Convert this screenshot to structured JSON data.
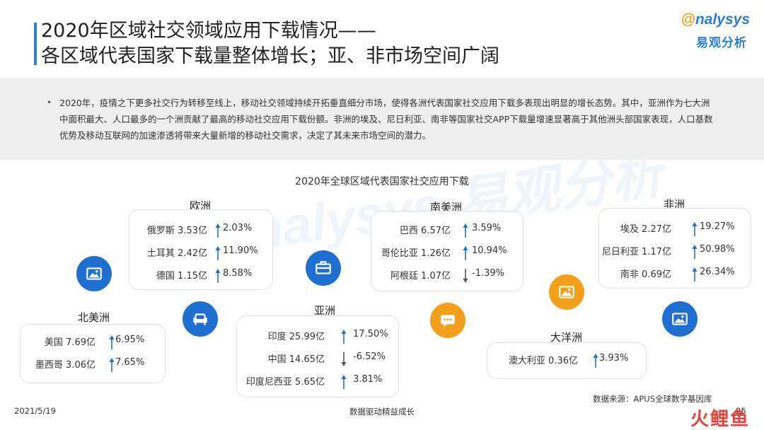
{
  "header": {
    "title_line1": "2020年区域社交领域应用下载情况——",
    "title_line2": "各区域代表国家下载量整体增长；亚、非市场空间广阔",
    "logo_en": "nalysys",
    "logo_en_o": "@",
    "logo_cn": "易观分析"
  },
  "summary": {
    "bullet": "•",
    "text": "2020年，疫情之下更多社交行为转移至线上，移动社交领域持续开拓垂直细分市场，使得各洲代表国家社交应用下载多表现出明显的增长态势。其中，亚洲作为七大洲中面积最大、人口最多的一个洲贡献了最高的移动社交应用下载份额。非洲的埃及、尼日利亚、南非等国家社交APP下载量增速显著高于其他洲头部国家表现，人口基数优势及移动互联网的加速渗透将带来大量新增的移动社交需求，决定了其未来市场空间的潜力。"
  },
  "chart": {
    "title": "2020年全球区域代表国家社交应用下载",
    "colors": {
      "up": "#1f6fd1",
      "down": "#555555",
      "blue": "#1f6fd1",
      "orange": "#f5a01a"
    }
  },
  "regions": {
    "europe": {
      "label": "欧洲",
      "rows": [
        {
          "country": "俄罗斯 3.53亿",
          "pct": "2.03%",
          "dir": "up"
        },
        {
          "country": "土耳其 2.42亿",
          "pct": "11.90%",
          "dir": "up"
        },
        {
          "country": "德国 1.15亿",
          "pct": "8.58%",
          "dir": "up"
        }
      ]
    },
    "north_america": {
      "label": "北美洲",
      "rows": [
        {
          "country": "美国 7.69亿",
          "pct": "6.95%",
          "dir": "up"
        },
        {
          "country": "墨西哥 3.06亿",
          "pct": "7.65%",
          "dir": "up"
        }
      ]
    },
    "asia": {
      "label": "亚洲",
      "rows": [
        {
          "country": "印度 25.99亿",
          "pct": "17.50%",
          "dir": "up"
        },
        {
          "country": "中国 14.65亿",
          "pct": "-6.52%",
          "dir": "down"
        },
        {
          "country": "印度尼西亚 5.65亿",
          "pct": "3.81%",
          "dir": "up"
        }
      ]
    },
    "south_america": {
      "label": "南美洲",
      "rows": [
        {
          "country": "巴西 6.57亿",
          "pct": "3.59%",
          "dir": "up"
        },
        {
          "country": "哥伦比亚 1.26亿",
          "pct": "10.94%",
          "dir": "up"
        },
        {
          "country": "阿根廷 1.07亿",
          "pct": "-1.39%",
          "dir": "down"
        }
      ]
    },
    "oceania": {
      "label": "大洋洲",
      "rows": [
        {
          "country": "澳大利亚 0.36亿",
          "pct": "3.93%",
          "dir": "up"
        }
      ]
    },
    "africa": {
      "label": "非洲",
      "rows": [
        {
          "country": "埃及 2.27亿",
          "pct": "19.27%",
          "dir": "up"
        },
        {
          "country": "尼日利亚 1.17亿",
          "pct": "50.98%",
          "dir": "up"
        },
        {
          "country": "南非 0.69亿",
          "pct": "26.34%",
          "dir": "up"
        }
      ]
    }
  },
  "icons": {
    "na_image": "image-icon",
    "sofa": "sofa-icon",
    "asia_briefcase": "briefcase-icon",
    "chat": "chat-icon",
    "oceania_image": "image-icon",
    "africa_image": "image-icon"
  },
  "footer": {
    "date": "2021/5/19",
    "slogan": "数据驱动精益成长",
    "source": "数据来源：APUS全球数字基因库",
    "page": "25",
    "watermark": "火鲤鱼"
  }
}
